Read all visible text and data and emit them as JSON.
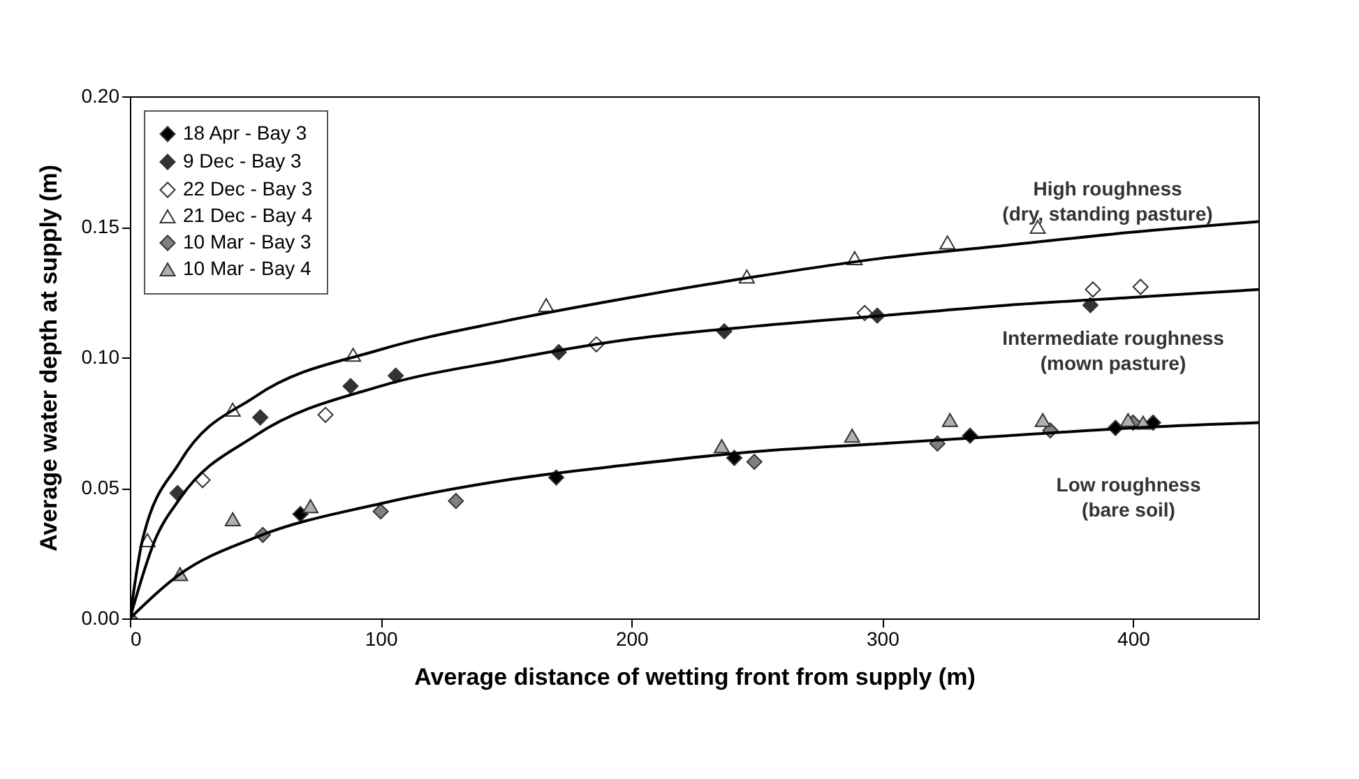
{
  "chart_data": {
    "type": "scatter",
    "xlabel": "Average distance of wetting front from supply (m)",
    "ylabel": "Average water depth at supply (m)",
    "xlim": [
      0,
      450
    ],
    "ylim": [
      0,
      0.2
    ],
    "xticks": [
      0,
      100,
      200,
      300,
      400
    ],
    "yticks": [
      {
        "value": 0,
        "label": "0.00"
      },
      {
        "value": 0.05,
        "label": "0.05"
      },
      {
        "value": 0.1,
        "label": "0.10"
      },
      {
        "value": 0.15,
        "label": "0.15"
      },
      {
        "value": 0.2,
        "label": "0.20"
      }
    ],
    "grid": false,
    "legend": "top left",
    "annotations": [
      "High roughness\n(dry, standing pasture)",
      "Intermediate roughness\n(mown pasture)",
      "Low roughness\n(bare soil)"
    ],
    "series": [
      {
        "name": "18 Apr - Bay 3",
        "type": "scatter",
        "marker": "diamond",
        "color": "#000000",
        "x": [
          68,
          170,
          241,
          335,
          393,
          408
        ],
        "values": [
          0.04,
          0.054,
          0.0615,
          0.07,
          0.073,
          0.075
        ]
      },
      {
        "name": "9 Dec - Bay 3",
        "type": "scatter",
        "marker": "diamond",
        "color": "#333333",
        "x": [
          19,
          52,
          88,
          106,
          171,
          237,
          298,
          383
        ],
        "values": [
          0.048,
          0.077,
          0.089,
          0.093,
          0.102,
          0.11,
          0.116,
          0.12
        ]
      },
      {
        "name": "22 Dec - Bay 3",
        "type": "scatter",
        "marker": "diamond",
        "color": "#ffffff",
        "x": [
          29,
          78,
          186,
          293,
          384,
          403
        ],
        "values": [
          0.053,
          0.078,
          0.105,
          0.117,
          0.126,
          0.127
        ]
      },
      {
        "name": "21 Dec - Bay 4",
        "type": "scatter",
        "marker": "triangle",
        "color": "#ffffff",
        "x": [
          7,
          41,
          89,
          166,
          246,
          289,
          326,
          362
        ],
        "values": [
          0.03,
          0.08,
          0.101,
          0.12,
          0.131,
          0.138,
          0.144,
          0.15
        ]
      },
      {
        "name": "10 Mar - Bay 3",
        "type": "scatter",
        "marker": "diamond",
        "color": "#808080",
        "x": [
          0,
          53,
          100,
          130,
          249,
          322,
          367,
          400
        ],
        "values": [
          0,
          0.032,
          0.041,
          0.045,
          0.06,
          0.067,
          0.072,
          0.075
        ]
      },
      {
        "name": "10 Mar - Bay 4",
        "type": "scatter",
        "marker": "triangle",
        "color": "#b0b0b0",
        "x": [
          20,
          41,
          72,
          236,
          288,
          327,
          364,
          398,
          404
        ],
        "values": [
          0.017,
          0.038,
          0.043,
          0.066,
          0.07,
          0.076,
          0.076,
          0.076,
          0.075
        ]
      },
      {
        "type": "line",
        "marker": "none",
        "color": "#000000",
        "x": [
          0,
          5,
          20,
          50,
          100,
          150,
          200,
          250,
          300,
          350,
          400,
          450
        ],
        "values": [
          0,
          0.03,
          0.06,
          0.085,
          0.103,
          0.114,
          0.123,
          0.131,
          0.138,
          0.143,
          0.148,
          0.152
        ]
      },
      {
        "type": "line",
        "marker": "none",
        "color": "#000000",
        "x": [
          0,
          10,
          20,
          50,
          100,
          150,
          200,
          250,
          300,
          350,
          400,
          450
        ],
        "values": [
          0,
          0.03,
          0.046,
          0.07,
          0.089,
          0.099,
          0.107,
          0.112,
          0.116,
          0.12,
          0.123,
          0.126
        ]
      },
      {
        "type": "line",
        "marker": "none",
        "color": "#000000",
        "x": [
          0,
          20,
          50,
          100,
          150,
          200,
          250,
          300,
          350,
          400,
          450
        ],
        "values": [
          0,
          0.017,
          0.031,
          0.044,
          0.053,
          0.059,
          0.064,
          0.067,
          0.07,
          0.073,
          0.075
        ]
      }
    ]
  }
}
